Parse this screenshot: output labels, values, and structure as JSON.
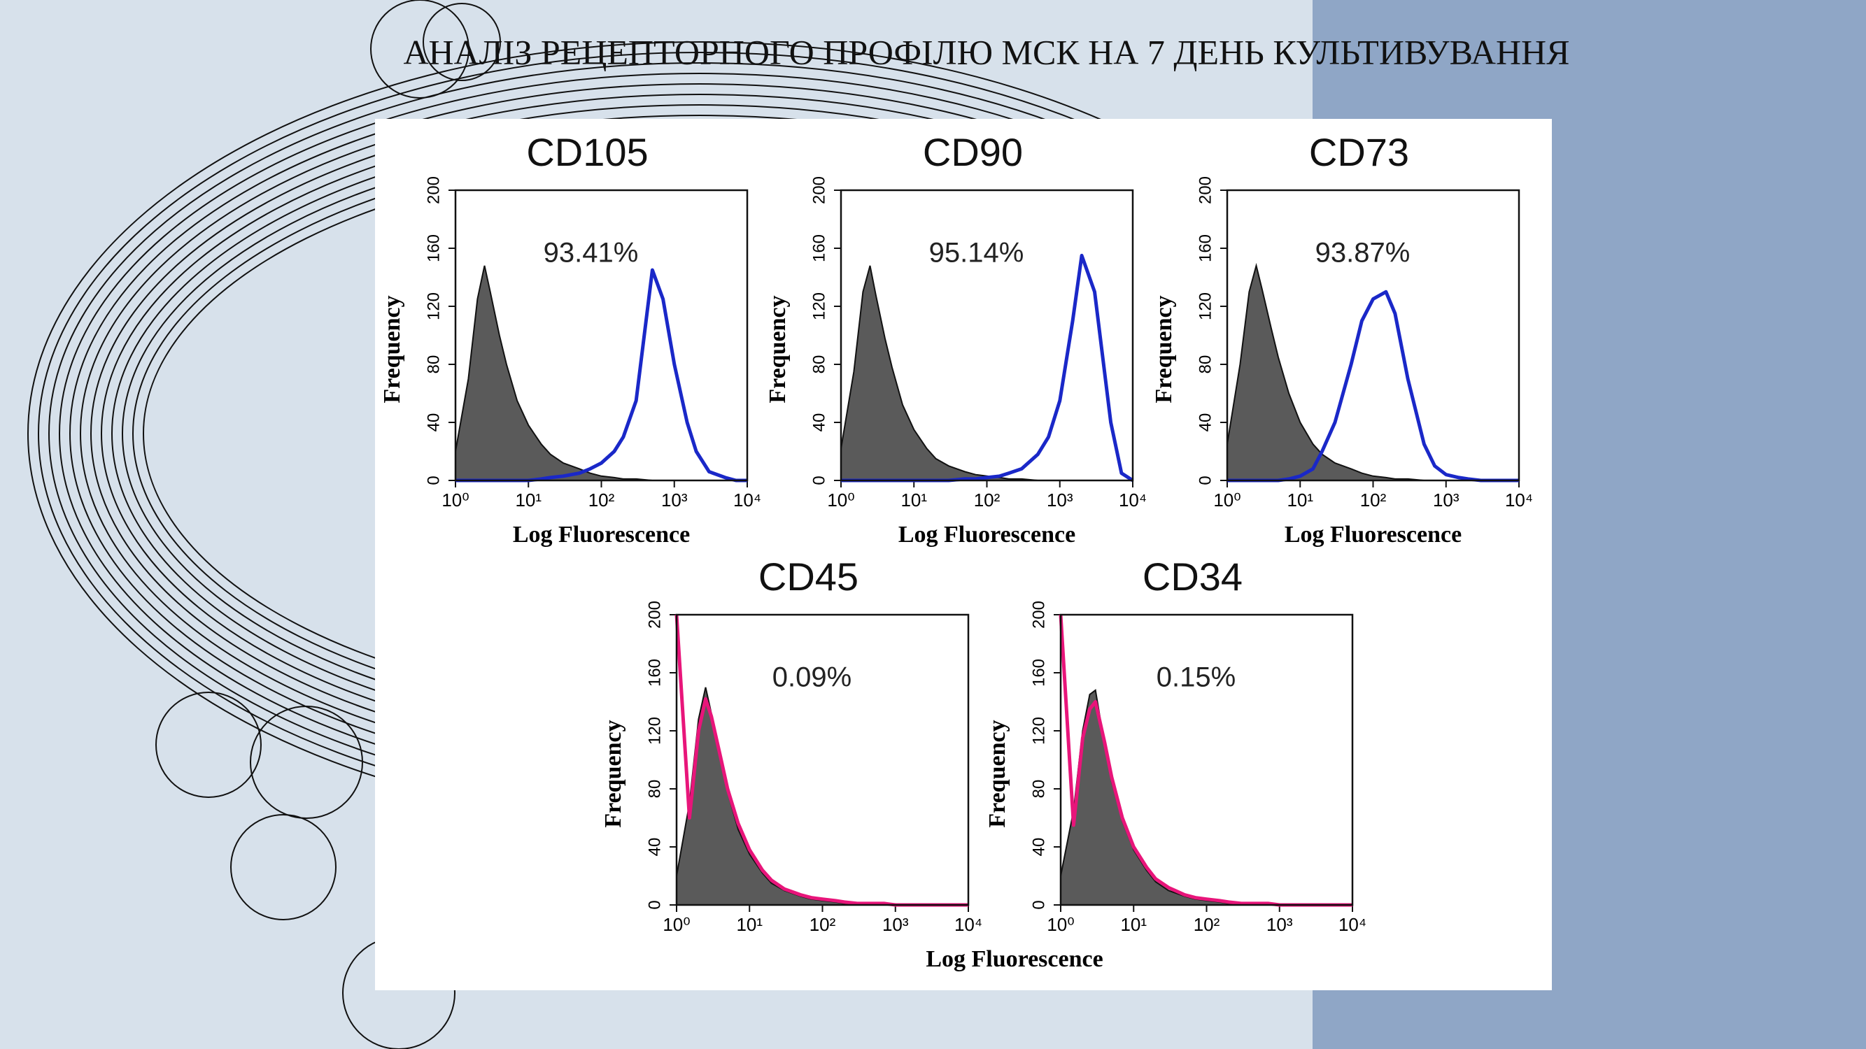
{
  "title": "АНАЛІЗ РЕЦЕПТОРНОГО ПРОФІЛЮ МСК НА 7 ДЕНЬ КУЛЬТИВУВАННЯ",
  "chart_data": [
    {
      "type": "histogram",
      "title": "CD105",
      "annotation": "93.41%",
      "ylabel": "Frequency",
      "xlabel": "Log Fluorescence",
      "xscale": "log",
      "xlim": [
        1,
        10000
      ],
      "xticks": [
        {
          "value": 1,
          "label": "10⁰"
        },
        {
          "value": 10,
          "label": "10¹"
        },
        {
          "value": 100,
          "label": "10²"
        },
        {
          "value": 1000,
          "label": "10³"
        },
        {
          "value": 10000,
          "label": "10⁴"
        }
      ],
      "ylim": [
        0,
        200
      ],
      "yticks": [
        0,
        40,
        80,
        120,
        160,
        200
      ],
      "x": [
        1,
        1.5,
        2,
        2.5,
        3,
        4,
        5,
        7,
        10,
        15,
        20,
        30,
        50,
        70,
        100,
        150,
        200,
        300,
        500,
        700,
        1000,
        1500,
        2000,
        3000,
        5000,
        7000,
        10000
      ],
      "series": [
        {
          "style": "area",
          "color": "#5a5a5a",
          "values": [
            20,
            70,
            125,
            148,
            130,
            100,
            80,
            55,
            38,
            25,
            18,
            12,
            8,
            5,
            3,
            2,
            1,
            1,
            0,
            0,
            0,
            0,
            0,
            0,
            0,
            0,
            0
          ]
        },
        {
          "style": "line",
          "color": "#1a28c8",
          "values": [
            0,
            0,
            0,
            0,
            0,
            0,
            0,
            0,
            0,
            1,
            2,
            3,
            5,
            8,
            12,
            20,
            30,
            55,
            145,
            125,
            80,
            40,
            20,
            6,
            2,
            0,
            0
          ]
        }
      ]
    },
    {
      "type": "histogram",
      "title": "CD90",
      "annotation": "95.14%",
      "ylabel": "Frequency",
      "xlabel": "Log Fluorescence",
      "xscale": "log",
      "xlim": [
        1,
        10000
      ],
      "xticks": [
        {
          "value": 1,
          "label": "10⁰"
        },
        {
          "value": 10,
          "label": "10¹"
        },
        {
          "value": 100,
          "label": "10²"
        },
        {
          "value": 1000,
          "label": "10³"
        },
        {
          "value": 10000,
          "label": "10⁴"
        }
      ],
      "ylim": [
        0,
        200
      ],
      "yticks": [
        0,
        40,
        80,
        120,
        160,
        200
      ],
      "x": [
        1,
        1.5,
        2,
        2.5,
        3,
        4,
        5,
        7,
        10,
        15,
        20,
        30,
        50,
        70,
        100,
        150,
        200,
        300,
        500,
        700,
        1000,
        1500,
        2000,
        3000,
        5000,
        7000,
        10000
      ],
      "series": [
        {
          "style": "area",
          "color": "#5a5a5a",
          "values": [
            22,
            75,
            130,
            148,
            128,
            98,
            78,
            52,
            35,
            22,
            15,
            10,
            6,
            4,
            3,
            2,
            1,
            1,
            0,
            0,
            0,
            0,
            0,
            0,
            0,
            0,
            0
          ]
        },
        {
          "style": "line",
          "color": "#1a28c8",
          "values": [
            0,
            0,
            0,
            0,
            0,
            0,
            0,
            0,
            0,
            0,
            0,
            0,
            1,
            1,
            2,
            3,
            5,
            8,
            18,
            30,
            55,
            110,
            155,
            130,
            40,
            5,
            0
          ]
        }
      ]
    },
    {
      "type": "histogram",
      "title": "CD73",
      "annotation": "93.87%",
      "ylabel": "Frequency",
      "xlabel": "Log Fluorescence",
      "xscale": "log",
      "xlim": [
        1,
        10000
      ],
      "xticks": [
        {
          "value": 1,
          "label": "10⁰"
        },
        {
          "value": 10,
          "label": "10¹"
        },
        {
          "value": 100,
          "label": "10²"
        },
        {
          "value": 1000,
          "label": "10³"
        },
        {
          "value": 10000,
          "label": "10⁴"
        }
      ],
      "ylim": [
        0,
        200
      ],
      "yticks": [
        0,
        40,
        80,
        120,
        160,
        200
      ],
      "x": [
        1,
        1.5,
        2,
        2.5,
        3,
        4,
        5,
        7,
        10,
        15,
        20,
        30,
        50,
        70,
        100,
        150,
        200,
        300,
        500,
        700,
        1000,
        1500,
        2000,
        3000,
        5000,
        7000,
        10000
      ],
      "series": [
        {
          "style": "area",
          "color": "#5a5a5a",
          "values": [
            25,
            80,
            130,
            148,
            132,
            105,
            85,
            60,
            40,
            25,
            18,
            12,
            8,
            5,
            3,
            2,
            1,
            1,
            0,
            0,
            0,
            0,
            0,
            0,
            0,
            0,
            0
          ]
        },
        {
          "style": "line",
          "color": "#1a28c8",
          "values": [
            0,
            0,
            0,
            0,
            0,
            0,
            0,
            1,
            3,
            8,
            20,
            40,
            80,
            110,
            125,
            130,
            115,
            70,
            25,
            10,
            4,
            2,
            1,
            0,
            0,
            0,
            0
          ]
        }
      ]
    },
    {
      "type": "histogram",
      "title": "CD45",
      "annotation": "0.09%",
      "ylabel": "Frequency",
      "xlabel": "Log Fluorescence",
      "xscale": "log",
      "xlim": [
        1,
        10000
      ],
      "xticks": [
        {
          "value": 1,
          "label": "10⁰"
        },
        {
          "value": 10,
          "label": "10¹"
        },
        {
          "value": 100,
          "label": "10²"
        },
        {
          "value": 1000,
          "label": "10³"
        },
        {
          "value": 10000,
          "label": "10⁴"
        }
      ],
      "ylim": [
        0,
        200
      ],
      "yticks": [
        0,
        40,
        80,
        120,
        160,
        200
      ],
      "x": [
        1,
        1.5,
        2,
        2.5,
        3,
        4,
        5,
        7,
        10,
        15,
        20,
        30,
        50,
        70,
        100,
        150,
        200,
        300,
        500,
        700,
        1000,
        1500,
        2000,
        3000,
        5000,
        7000,
        10000
      ],
      "series": [
        {
          "style": "area",
          "color": "#5a5a5a",
          "values": [
            20,
            70,
            128,
            150,
            132,
            100,
            78,
            52,
            35,
            22,
            15,
            10,
            6,
            4,
            3,
            2,
            1,
            1,
            0,
            0,
            0,
            0,
            0,
            0,
            0,
            0,
            0
          ]
        },
        {
          "style": "line",
          "color": "#e8157a",
          "values": [
            200,
            60,
            120,
            142,
            130,
            102,
            80,
            56,
            38,
            24,
            17,
            11,
            7,
            5,
            4,
            3,
            2,
            1,
            1,
            1,
            0,
            0,
            0,
            0,
            0,
            0,
            0
          ]
        }
      ]
    },
    {
      "type": "histogram",
      "title": "CD34",
      "annotation": "0.15%",
      "ylabel": "Frequency",
      "xscale": "log",
      "xlim": [
        1,
        10000
      ],
      "xticks": [
        {
          "value": 1,
          "label": "10⁰"
        },
        {
          "value": 10,
          "label": "10¹"
        },
        {
          "value": 100,
          "label": "10²"
        },
        {
          "value": 1000,
          "label": "10³"
        },
        {
          "value": 10000,
          "label": "10⁴"
        }
      ],
      "ylim": [
        0,
        200
      ],
      "yticks": [
        0,
        40,
        80,
        120,
        160,
        200
      ],
      "x": [
        1,
        1.5,
        2,
        2.5,
        3,
        4,
        5,
        7,
        10,
        15,
        20,
        30,
        50,
        70,
        100,
        150,
        200,
        300,
        500,
        700,
        1000,
        1500,
        2000,
        3000,
        5000,
        7000,
        10000
      ],
      "series": [
        {
          "style": "area",
          "color": "#5a5a5a",
          "values": [
            20,
            65,
            120,
            145,
            148,
            110,
            85,
            58,
            38,
            24,
            16,
            10,
            6,
            4,
            3,
            2,
            1,
            1,
            0,
            0,
            0,
            0,
            0,
            0,
            0,
            0,
            0
          ]
        },
        {
          "style": "line",
          "color": "#e8157a",
          "values": [
            200,
            55,
            115,
            135,
            140,
            112,
            88,
            60,
            40,
            26,
            18,
            12,
            7,
            5,
            4,
            3,
            2,
            1,
            1,
            1,
            0,
            0,
            0,
            0,
            0,
            0,
            0
          ]
        }
      ]
    }
  ]
}
